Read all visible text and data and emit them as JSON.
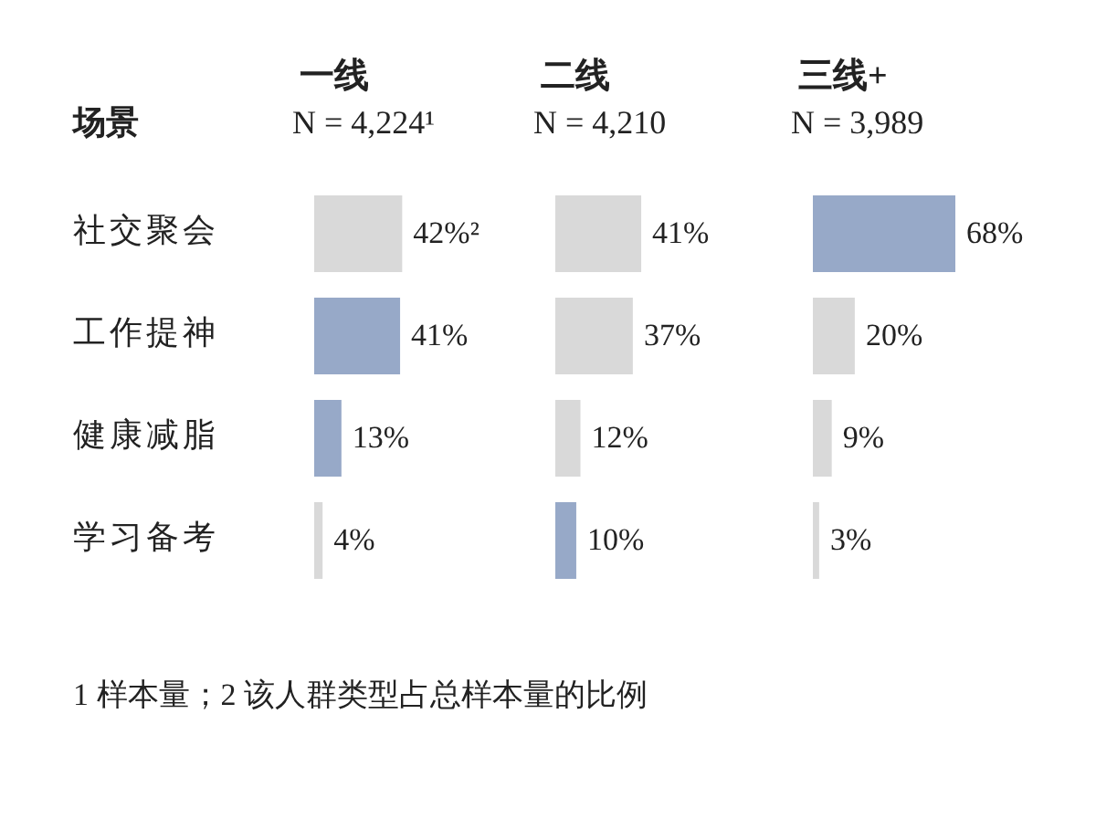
{
  "chart_data": [
    {
      "type": "bar",
      "orientation": "horizontal",
      "title": "一线",
      "subtitle": "N = 4,224¹",
      "ylabel": "场景",
      "categories": [
        "社交聚会",
        "工作提神",
        "健康减脂",
        "学习备考"
      ],
      "values": [
        42,
        41,
        13,
        4
      ],
      "colors": [
        "#d9d9d9",
        "#97a9c8",
        "#97a9c8",
        "#d9d9d9"
      ],
      "value_labels": [
        "42%²",
        "41%",
        "13%",
        "4%"
      ],
      "tick_labels": "y",
      "annotations": [
        "1 样本量；2 该人群类型占总样本量的比例"
      ]
    },
    {
      "type": "bar",
      "orientation": "horizontal",
      "title": "二线",
      "subtitle": "N = 4,210",
      "categories": [
        null,
        null,
        null,
        null
      ],
      "values": [
        41,
        37,
        12,
        10
      ],
      "colors": [
        "#d9d9d9",
        "#d9d9d9",
        "#d9d9d9",
        "#97a9c8"
      ],
      "value_labels": [
        "41%",
        "37%",
        "12%",
        "10%"
      ]
    },
    {
      "type": "bar",
      "orientation": "horizontal",
      "title": "三线+",
      "subtitle": "N = 3,989",
      "categories": [
        null,
        null,
        null,
        null
      ],
      "values": [
        68,
        20,
        9,
        3
      ],
      "colors": [
        "#97a9c8",
        "#d9d9d9",
        "#d9d9d9",
        "#d9d9d9"
      ],
      "value_labels": [
        "68%",
        "20%",
        "9%",
        "3%"
      ]
    }
  ]
}
